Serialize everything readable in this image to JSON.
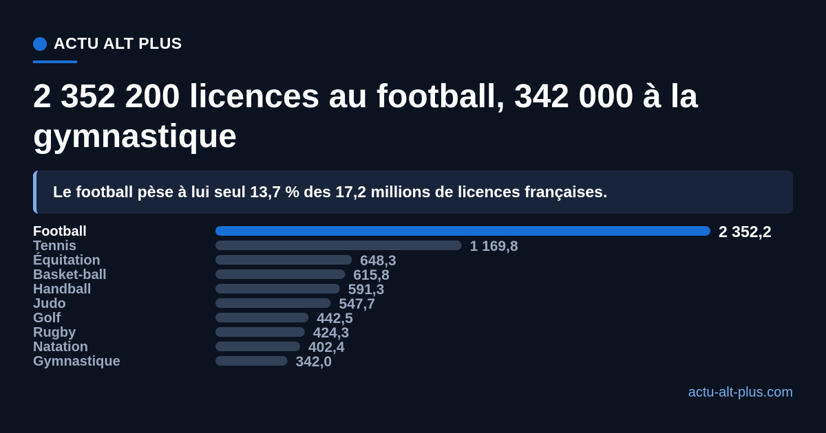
{
  "brand": {
    "name": "ACTU ALT PLUS",
    "accent": "#1a6fd6"
  },
  "headline": "2 352 200 licences au football, 342 000 à la gymnastique",
  "subtitle": "Le football pèse à lui seul 13,7 % des 17,2 millions de licences françaises.",
  "footer": {
    "site": "actu-alt-plus.com"
  },
  "colors": {
    "background": "#0b1220",
    "highlight_bar": "#1a6fd6",
    "default_bar": "#334158",
    "muted_text": "#9aa8bf",
    "link": "#7aaee8"
  },
  "chart_data": {
    "type": "bar",
    "orientation": "horizontal",
    "categories": [
      "Football",
      "Tennis",
      "Équitation",
      "Basket-ball",
      "Handball",
      "Judo",
      "Golf",
      "Rugby",
      "Natation",
      "Gymnastique"
    ],
    "values": [
      2352.2,
      1169.8,
      648.3,
      615.8,
      591.3,
      547.7,
      442.5,
      424.3,
      402.4,
      342.0
    ],
    "value_labels": [
      "2 352,2",
      "1 169,8",
      "648,3",
      "615,8",
      "591,3",
      "547,7",
      "442,5",
      "424,3",
      "402,4",
      "342,0"
    ],
    "highlight": "Football",
    "xlim": [
      0,
      2352.2
    ],
    "grid": false,
    "legend": "none"
  }
}
